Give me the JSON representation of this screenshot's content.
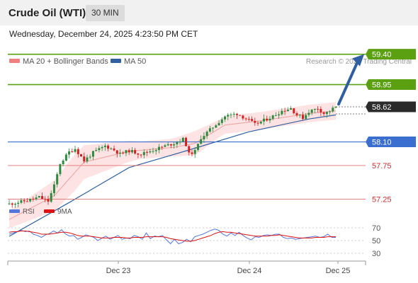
{
  "header": {
    "title": "Crude Oil (WTI)",
    "timeframe": "30 MIN",
    "datetime": "Wednesday, December 24, 2025 4:23:50 PM CET"
  },
  "legend": {
    "ma20_label": "MA 20 + Bollinger Bands",
    "ma50_label": "MA 50",
    "ma20_color": "#f08080",
    "ma50_color": "#3060a0"
  },
  "watermark": "Research © 2025 Trading Central",
  "colors": {
    "resistance": "#5aa010",
    "support_blue": "#3a6fd0",
    "support_red": "#e07070",
    "candle_up": "#2e8b3e",
    "candle_down": "#d42020",
    "band_fill": "#fde3e3",
    "arrow": "#2f5fa0",
    "rsi": "#5577dd",
    "rsi_ma": "#dd1111"
  },
  "chart_data": [
    {
      "type": "candlestick",
      "title": "Crude Oil (WTI)",
      "timeframe": "30 MIN",
      "x_labels": [
        "Dec 23",
        "Dec 24",
        "Dec 25"
      ],
      "ylim": [
        56.6,
        59.65
      ],
      "levels": [
        {
          "label": "59.40",
          "value": 59.4,
          "kind": "resistance"
        },
        {
          "label": "58.95",
          "value": 58.95,
          "kind": "resistance"
        },
        {
          "label": "58.62",
          "value": 58.62,
          "kind": "last_price"
        },
        {
          "label": "58.10",
          "value": 58.1,
          "kind": "support_blue"
        },
        {
          "label": "57.75",
          "value": 57.75,
          "kind": "support_red"
        },
        {
          "label": "57.25",
          "value": 57.25,
          "kind": "support_red"
        }
      ],
      "price_path": [
        [
          0,
          57.18
        ],
        [
          6,
          57.23
        ],
        [
          10,
          57.28
        ],
        [
          13,
          57.22
        ],
        [
          15,
          57.45
        ],
        [
          17,
          57.78
        ],
        [
          20,
          57.95
        ],
        [
          22,
          58.0
        ],
        [
          25,
          57.82
        ],
        [
          28,
          57.94
        ],
        [
          32,
          58.04
        ],
        [
          35,
          57.98
        ],
        [
          37,
          57.92
        ],
        [
          40,
          57.97
        ],
        [
          44,
          57.92
        ],
        [
          48,
          57.98
        ],
        [
          52,
          58.04
        ],
        [
          55,
          58.08
        ],
        [
          58,
          58.14
        ],
        [
          59,
          58.06
        ],
        [
          60,
          57.92
        ],
        [
          62,
          57.96
        ],
        [
          64,
          58.16
        ],
        [
          68,
          58.32
        ],
        [
          72,
          58.48
        ],
        [
          76,
          58.52
        ],
        [
          80,
          58.42
        ],
        [
          82,
          58.36
        ],
        [
          85,
          58.42
        ],
        [
          88,
          58.48
        ],
        [
          91,
          58.56
        ],
        [
          94,
          58.6
        ],
        [
          96,
          58.5
        ],
        [
          98,
          58.46
        ],
        [
          100,
          58.55
        ],
        [
          103,
          58.6
        ],
        [
          105,
          58.52
        ],
        [
          107,
          58.56
        ],
        [
          109,
          58.62
        ]
      ],
      "ma50_path": [
        [
          0,
          56.7
        ],
        [
          20,
          57.2
        ],
        [
          40,
          57.72
        ],
        [
          60,
          57.98
        ],
        [
          80,
          58.25
        ],
        [
          100,
          58.44
        ],
        [
          109,
          58.5
        ]
      ],
      "ma20_path": [
        [
          0,
          56.95
        ],
        [
          15,
          57.3
        ],
        [
          25,
          57.8
        ],
        [
          40,
          57.96
        ],
        [
          55,
          58.02
        ],
        [
          62,
          58.08
        ],
        [
          72,
          58.35
        ],
        [
          85,
          58.42
        ],
        [
          100,
          58.52
        ],
        [
          109,
          58.56
        ]
      ],
      "projection": {
        "from": 58.66,
        "to": 59.4
      }
    },
    {
      "type": "line",
      "title": "RSI",
      "series": [
        {
          "name": "RSI",
          "values": [
            60,
            62,
            64,
            66,
            64,
            65,
            60,
            58,
            55,
            59,
            61,
            65,
            62,
            67,
            60,
            57,
            58,
            52,
            55,
            59,
            57,
            55,
            50,
            54,
            57,
            52,
            55,
            58,
            52,
            54,
            53,
            58,
            56,
            52,
            62,
            53,
            57,
            56,
            58,
            51,
            45,
            52,
            45,
            47,
            52,
            48,
            56,
            58,
            60,
            63,
            66,
            68,
            66,
            60,
            57,
            62,
            58,
            63,
            58,
            54,
            51,
            56,
            55,
            58,
            59,
            58,
            60,
            60,
            55,
            53,
            54,
            52,
            53,
            54,
            55,
            56,
            57,
            55,
            56,
            60,
            55,
            55
          ]
        },
        {
          "name": "9MA",
          "values": [
            63,
            64,
            64,
            65,
            65,
            64,
            63,
            62,
            60,
            60,
            60,
            61,
            62,
            63,
            63,
            62,
            60,
            58,
            57,
            57,
            57,
            56,
            55,
            54,
            54,
            54,
            55,
            55,
            55,
            54,
            54,
            55,
            55,
            55,
            56,
            56,
            56,
            56,
            56,
            55,
            53,
            52,
            51,
            50,
            49,
            49,
            50,
            52,
            54,
            56,
            58,
            61,
            63,
            64,
            63,
            63,
            62,
            61,
            60,
            59,
            58,
            57,
            57,
            57,
            57,
            58,
            58,
            59,
            58,
            57,
            56,
            55,
            54,
            54,
            54,
            54,
            55,
            55,
            55,
            56,
            56,
            56
          ]
        }
      ],
      "y_ticks": [
        "70",
        "50",
        "30"
      ],
      "ylim": [
        20,
        85
      ]
    }
  ]
}
